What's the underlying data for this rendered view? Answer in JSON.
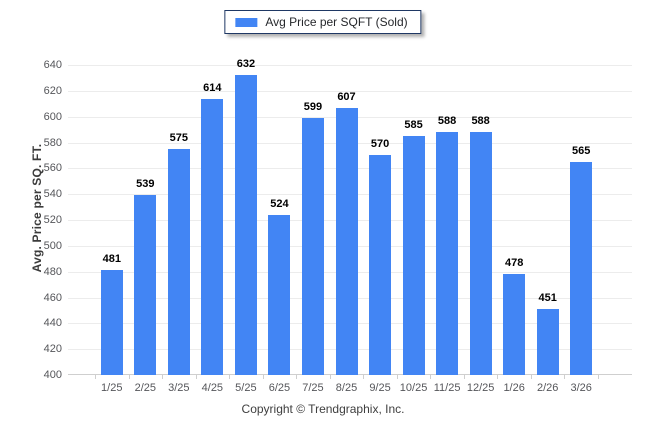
{
  "legend": {
    "label": "Avg Price per SQFT (Sold)"
  },
  "y_axis": {
    "title": "Avg. Price per SQ. FT."
  },
  "footer": {
    "copyright": "Copyright © Trendgraphix, Inc."
  },
  "colors": {
    "bar": "#4285F4",
    "legend_border": "#1F3864",
    "grid": "#ECECEC",
    "axis": "#CFCFCF",
    "tick_label": "#55565A",
    "value_label": "#000000",
    "axis_title": "#3B3B3B",
    "copyright": "#3F3F3F"
  },
  "chart_data": {
    "type": "bar",
    "categories": [
      "1/25",
      "2/25",
      "3/25",
      "4/25",
      "5/25",
      "6/25",
      "7/25",
      "8/25",
      "9/25",
      "10/25",
      "11/25",
      "12/25",
      "1/26",
      "2/26",
      "3/26"
    ],
    "values": [
      481,
      539,
      575,
      614,
      632,
      524,
      599,
      607,
      570,
      585,
      588,
      588,
      478,
      451,
      565
    ],
    "series_name": "Avg Price per SQFT (Sold)",
    "title": "",
    "xlabel": "",
    "ylabel": "Avg. Price per SQ. FT.",
    "ylim": [
      400,
      640
    ],
    "ytick_step": 20,
    "grid": true,
    "legend_position": "top",
    "value_labels": true
  }
}
